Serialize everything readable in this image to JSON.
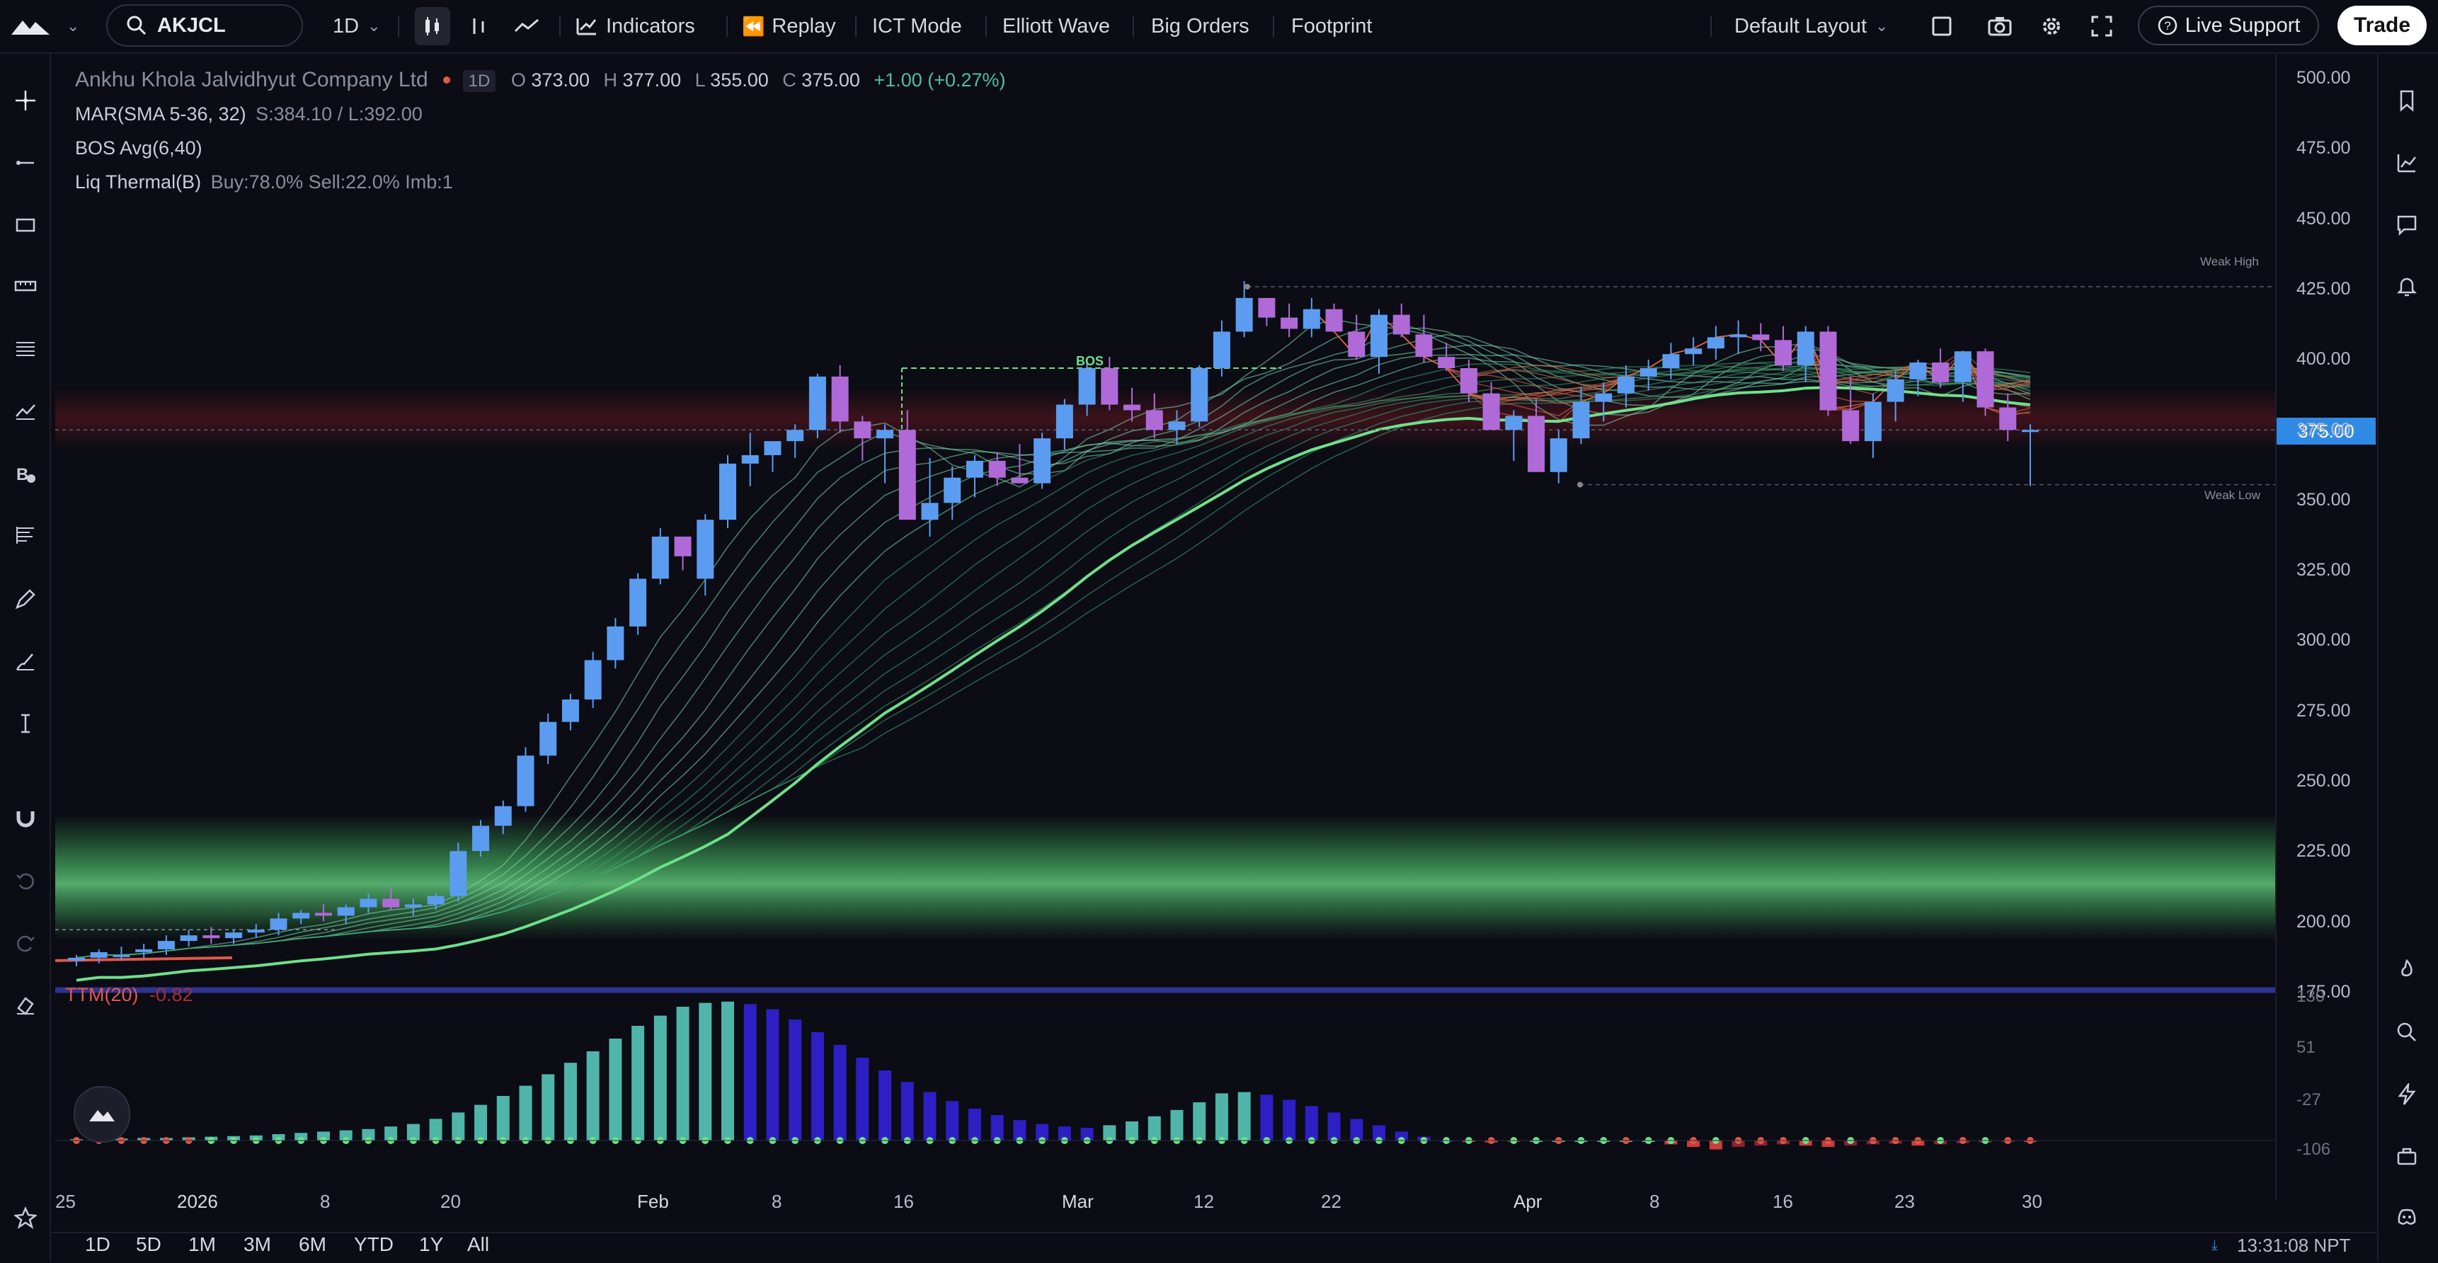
{
  "topbar": {
    "symbol": "AKJCL",
    "interval": "1D",
    "indicators_label": "Indicators",
    "replay_label": "Replay",
    "ict_mode_label": "ICT Mode",
    "elliott_wave_label": "Elliott Wave",
    "big_orders_label": "Big Orders",
    "footprint_label": "Footprint",
    "layout_label": "Default Layout",
    "live_support_label": "Live Support",
    "trade_label": "Trade"
  },
  "legend": {
    "company": "Ankhu Khola Jalvidhyut Company Ltd",
    "interval_badge": "1D",
    "o_label": "O",
    "o_value": "373.00",
    "h_label": "H",
    "h_value": "377.00",
    "l_label": "L",
    "l_value": "355.00",
    "c_label": "C",
    "c_value": "375.00",
    "change": "+1.00 (+0.27%)",
    "mar_name": "MAR(SMA 5-36, 32)",
    "mar_values": "S:384.10 / L:392.00",
    "bos_name": "BOS Avg(6,40)",
    "liq_name": "Liq Thermal(B)",
    "liq_values": "Buy:78.0% Sell:22.0% Imb:1",
    "ttm_name": "TTM(20)",
    "ttm_value": "-0.82"
  },
  "annotations": {
    "bos": "BOS",
    "weak_high": "Weak High",
    "weak_low": "Weak Low"
  },
  "price_axis": [
    "500.00",
    "475.00",
    "450.00",
    "425.00",
    "400.00",
    "375.00",
    "350.00",
    "325.00",
    "300.00",
    "275.00",
    "250.00",
    "225.00",
    "200.00",
    "175.00"
  ],
  "current_price": "375.00",
  "osc_axis": [
    "130",
    "51",
    "-27",
    "-106"
  ],
  "time_axis": [
    "25",
    "2026",
    "8",
    "20",
    "Feb",
    "8",
    "16",
    "Mar",
    "12",
    "22",
    "Apr",
    "8",
    "16",
    "23",
    "30"
  ],
  "timeframes": [
    "1D",
    "5D",
    "1M",
    "3M",
    "6M",
    "YTD",
    "1Y",
    "All"
  ],
  "clock": "13:31:08 NPT",
  "colors": {
    "up": "#5b9cf0",
    "down": "#b06ad8",
    "accent": "#2f8ae5",
    "green": "#6ee08a",
    "red": "#e0584a"
  },
  "icons": {
    "left": [
      "crosshair-icon",
      "trend-line-icon",
      "rectangle-icon",
      "ruler-icon",
      "fib-icon",
      "pattern-icon",
      "brush-text-icon",
      "long-position-icon",
      "pen-icon",
      "eraser-brush-icon",
      "text-icon",
      "magnet-icon",
      "undo-icon",
      "redo-icon",
      "trash-icon",
      "star-icon"
    ],
    "right": [
      "bookmark-icon",
      "watchlist-icon",
      "chat-icon",
      "alert-icon",
      "hot-icon",
      "search-icon",
      "lightning-icon",
      "briefcase-icon",
      "discord-icon"
    ]
  }
}
